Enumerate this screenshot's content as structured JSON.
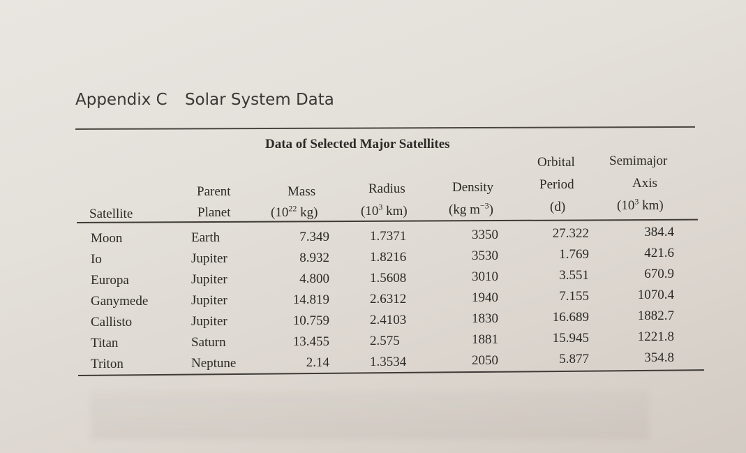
{
  "header": {
    "chapter": "Appendix C",
    "section": "Solar System Data"
  },
  "table": {
    "title": "Data of Selected Major Satellites",
    "columns": [
      {
        "lines": [
          "Satellite"
        ]
      },
      {
        "lines": [
          "Parent",
          "Planet"
        ]
      },
      {
        "lines": [
          "Mass",
          "(10",
          "22",
          " kg)"
        ]
      },
      {
        "lines": [
          "Radius",
          "(10",
          "3",
          " km)"
        ]
      },
      {
        "lines": [
          "Density",
          "(kg m",
          "−3",
          ")"
        ]
      },
      {
        "lines": [
          "Orbital",
          "Period",
          "(d)"
        ]
      },
      {
        "lines": [
          "Semimajor",
          "Axis",
          "(10",
          "3",
          " km)"
        ]
      }
    ],
    "rows": [
      {
        "satellite": "Moon",
        "planet": "Earth",
        "mass": "7.349",
        "radius": "1.7371",
        "density": "3350",
        "period": "27.322",
        "axis": "384.4"
      },
      {
        "satellite": "Io",
        "planet": "Jupiter",
        "mass": "8.932",
        "radius": "1.8216",
        "density": "3530",
        "period": "1.769",
        "axis": "421.6"
      },
      {
        "satellite": "Europa",
        "planet": "Jupiter",
        "mass": "4.800",
        "radius": "1.5608",
        "density": "3010",
        "period": "3.551",
        "axis": "670.9"
      },
      {
        "satellite": "Ganymede",
        "planet": "Jupiter",
        "mass": "14.819",
        "radius": "2.6312",
        "density": "1940",
        "period": "7.155",
        "axis": "1070.4"
      },
      {
        "satellite": "Callisto",
        "planet": "Jupiter",
        "mass": "10.759",
        "radius": "2.4103",
        "density": "1830",
        "period": "16.689",
        "axis": "1882.7"
      },
      {
        "satellite": "Titan",
        "planet": "Saturn",
        "mass": "13.455",
        "radius": "2.575",
        "density": "1881",
        "period": "15.945",
        "axis": "1221.8"
      },
      {
        "satellite": "Triton",
        "planet": "Neptune",
        "mass": "2.14",
        "radius": "1.3534",
        "density": "2050",
        "period": "5.877",
        "axis": "354.8"
      }
    ]
  }
}
